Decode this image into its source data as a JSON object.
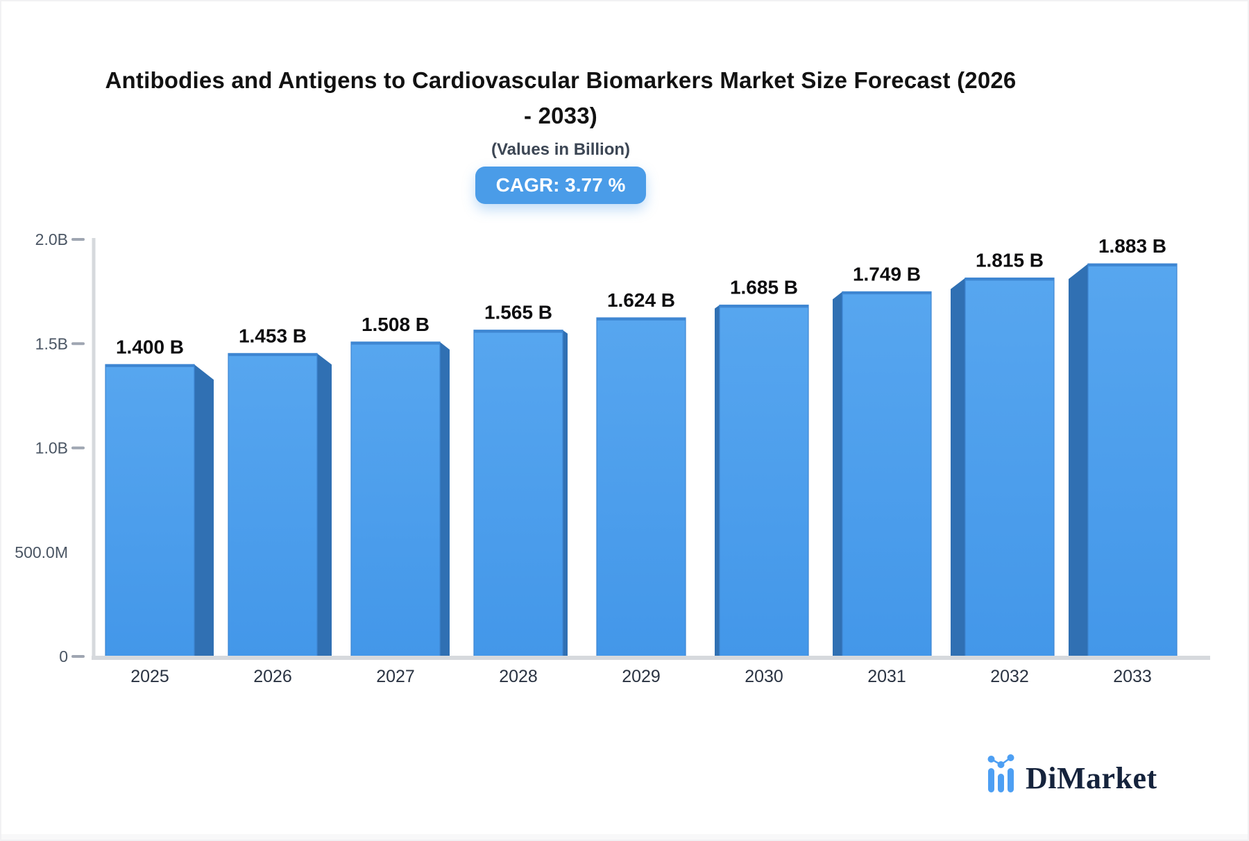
{
  "header": {
    "title": "Antibodies and Antigens to Cardiovascular Biomarkers Market Size Forecast (2026 - 2033)",
    "subtitle": "(Values in Billion)",
    "cagr": "CAGR: 3.77 %"
  },
  "chart_data": {
    "type": "bar",
    "title": "Antibodies and Antigens to Cardiovascular Biomarkers Market Size Forecast (2026 - 2033)",
    "subtitle": "(Values in Billion)",
    "unit": "Billion USD",
    "categories": [
      "2025",
      "2026",
      "2027",
      "2028",
      "2029",
      "2030",
      "2031",
      "2032",
      "2033"
    ],
    "values": [
      1.4,
      1.453,
      1.508,
      1.565,
      1.624,
      1.685,
      1.749,
      1.815,
      1.883
    ],
    "value_labels": [
      "1.400 B",
      "1.453 B",
      "1.508 B",
      "1.565 B",
      "1.624 B",
      "1.685 B",
      "1.749 B",
      "1.815 B",
      "1.883 B"
    ],
    "xlabel": "",
    "ylabel": "",
    "ylim": [
      0,
      2.0
    ],
    "grid": false,
    "legend": false,
    "yticks": [
      {
        "label": "2.0B",
        "value": 2.0,
        "tick": true
      },
      {
        "label": "1.5B",
        "value": 1.5,
        "tick": true
      },
      {
        "label": "1.0B",
        "value": 1.0,
        "tick": true
      },
      {
        "label": "500.0M",
        "value": 0.5,
        "tick": false
      },
      {
        "label": "0",
        "value": 0.0,
        "tick": true
      }
    ]
  },
  "colors": {
    "bar_face_top": "#57a6ef",
    "bar_face_bottom": "#4397e9",
    "bar_edge": "#3e86d2",
    "bar_side": "#3070b3",
    "badge_bg": "#4a9ce8",
    "axis_line": "#d6d9dd",
    "tick": "#9fa6b2",
    "y_label": "#4a5563",
    "x_label": "#2a3342",
    "value_label": "#0d0d0f",
    "brand_blue": "#4d9ff3",
    "brand_navy": "#15233c"
  },
  "footer": {
    "brand": "DiMarket"
  }
}
